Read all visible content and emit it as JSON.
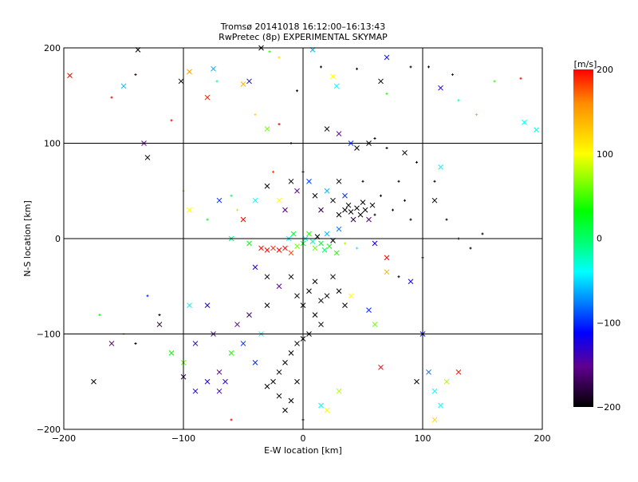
{
  "chart_data": {
    "type": "scatter",
    "title": "Tromsø 20141018 16:12:00–16:13:43",
    "subtitle": "RwPretec (8p) EXPERIMENTAL SKYMAP",
    "xlabel": "E-W location [km]",
    "ylabel": "N-S location [km]",
    "xlim": [
      -200,
      200
    ],
    "ylim": [
      -200,
      200
    ],
    "xticks": [
      "−200",
      "−100",
      "0",
      "100",
      "200"
    ],
    "yticks": [
      "−200",
      "−100",
      "0",
      "100",
      "200"
    ],
    "tick_values": [
      -200,
      -100,
      0,
      100,
      200
    ],
    "grid_values": [
      -100,
      0,
      100
    ],
    "colorbar": {
      "title": "[m/s]",
      "range": [
        -200,
        200
      ],
      "ticks": [
        "200",
        "100",
        "0",
        "−100",
        "−200"
      ],
      "tick_values": [
        200,
        100,
        0,
        -100,
        -200
      ],
      "colors": [
        "#ff0000",
        "#ff8c00",
        "#ffff00",
        "#00ff00",
        "#00ff80",
        "#00ffff",
        "#0000ff",
        "#600090",
        "#000000"
      ]
    },
    "point_fields": [
      "x_km",
      "y_km",
      "velocity_ms",
      "marker_x"
    ],
    "points": [
      [
        -195,
        171,
        200,
        1
      ],
      [
        -160,
        148,
        200,
        0
      ],
      [
        -150,
        160,
        -60,
        1
      ],
      [
        -140,
        172,
        -180,
        0
      ],
      [
        -138,
        198,
        -200,
        1
      ],
      [
        -102,
        165,
        -200,
        1
      ],
      [
        -95,
        175,
        150,
        1
      ],
      [
        -110,
        124,
        200,
        0
      ],
      [
        -75,
        178,
        -60,
        1
      ],
      [
        -80,
        148,
        190,
        1
      ],
      [
        -72,
        165,
        -20,
        0
      ],
      [
        -50,
        162,
        140,
        1
      ],
      [
        -45,
        165,
        -120,
        1
      ],
      [
        -35,
        200,
        -200,
        1
      ],
      [
        -28,
        196,
        40,
        0
      ],
      [
        -20,
        190,
        120,
        0
      ],
      [
        -5,
        155,
        -200,
        0
      ],
      [
        8,
        198,
        -60,
        1
      ],
      [
        15,
        180,
        -200,
        0
      ],
      [
        25,
        170,
        100,
        1
      ],
      [
        28,
        160,
        -40,
        1
      ],
      [
        45,
        178,
        -200,
        0
      ],
      [
        65,
        165,
        -200,
        1
      ],
      [
        70,
        152,
        40,
        0
      ],
      [
        70,
        190,
        -110,
        1
      ],
      [
        90,
        180,
        -200,
        0
      ],
      [
        105,
        180,
        -200,
        0
      ],
      [
        115,
        158,
        -120,
        1
      ],
      [
        125,
        172,
        -160,
        0
      ],
      [
        130,
        145,
        -20,
        0
      ],
      [
        145,
        130,
        140,
        0
      ],
      [
        160,
        165,
        50,
        0
      ],
      [
        182,
        168,
        200,
        0
      ],
      [
        185,
        122,
        -40,
        1
      ],
      [
        195,
        114,
        -30,
        1
      ],
      [
        -133,
        100,
        -150,
        1
      ],
      [
        -130,
        85,
        -200,
        1
      ],
      [
        -40,
        130,
        120,
        0
      ],
      [
        -30,
        115,
        60,
        1
      ],
      [
        -20,
        120,
        200,
        0
      ],
      [
        -10,
        100,
        -200,
        0
      ],
      [
        20,
        115,
        -200,
        1
      ],
      [
        30,
        110,
        -150,
        1
      ],
      [
        40,
        100,
        -100,
        1
      ],
      [
        45,
        95,
        -200,
        1
      ],
      [
        55,
        100,
        -200,
        1
      ],
      [
        60,
        105,
        -200,
        0
      ],
      [
        70,
        95,
        -200,
        0
      ],
      [
        85,
        90,
        -200,
        1
      ],
      [
        95,
        80,
        -200,
        0
      ],
      [
        115,
        75,
        -40,
        1
      ],
      [
        110,
        60,
        -200,
        0
      ],
      [
        80,
        60,
        -200,
        0
      ],
      [
        -100,
        50,
        140,
        0
      ],
      [
        -95,
        30,
        100,
        1
      ],
      [
        -80,
        20,
        20,
        0
      ],
      [
        -70,
        40,
        -100,
        1
      ],
      [
        -60,
        45,
        0,
        0
      ],
      [
        -55,
        30,
        120,
        0
      ],
      [
        -50,
        20,
        200,
        1
      ],
      [
        -40,
        40,
        -40,
        1
      ],
      [
        -30,
        55,
        -200,
        1
      ],
      [
        -25,
        70,
        180,
        0
      ],
      [
        -20,
        40,
        100,
        1
      ],
      [
        -15,
        30,
        -160,
        1
      ],
      [
        -10,
        60,
        -200,
        1
      ],
      [
        -5,
        50,
        -150,
        1
      ],
      [
        0,
        70,
        -200,
        0
      ],
      [
        5,
        60,
        -100,
        1
      ],
      [
        10,
        45,
        -200,
        1
      ],
      [
        15,
        30,
        -180,
        1
      ],
      [
        20,
        50,
        -60,
        1
      ],
      [
        25,
        40,
        -200,
        1
      ],
      [
        30,
        25,
        -200,
        1
      ],
      [
        35,
        30,
        -200,
        1
      ],
      [
        38,
        35,
        -200,
        1
      ],
      [
        40,
        28,
        -200,
        1
      ],
      [
        42,
        20,
        -180,
        1
      ],
      [
        45,
        32,
        -200,
        1
      ],
      [
        48,
        25,
        -200,
        1
      ],
      [
        50,
        38,
        -200,
        1
      ],
      [
        52,
        30,
        -200,
        1
      ],
      [
        55,
        20,
        -160,
        1
      ],
      [
        58,
        35,
        -200,
        1
      ],
      [
        60,
        25,
        -200,
        0
      ],
      [
        35,
        45,
        -100,
        1
      ],
      [
        30,
        60,
        -200,
        1
      ],
      [
        50,
        60,
        -200,
        0
      ],
      [
        65,
        45,
        -200,
        0
      ],
      [
        75,
        30,
        -200,
        0
      ],
      [
        85,
        40,
        -200,
        0
      ],
      [
        90,
        20,
        -200,
        0
      ],
      [
        110,
        40,
        -200,
        1
      ],
      [
        120,
        20,
        -200,
        0
      ],
      [
        -60,
        0,
        -10,
        1
      ],
      [
        -45,
        -5,
        30,
        1
      ],
      [
        -35,
        -10,
        200,
        1
      ],
      [
        -30,
        -12,
        200,
        1
      ],
      [
        -25,
        -10,
        190,
        1
      ],
      [
        -20,
        -12,
        200,
        1
      ],
      [
        -15,
        -10,
        200,
        1
      ],
      [
        -10,
        -15,
        180,
        1
      ],
      [
        -5,
        -8,
        60,
        1
      ],
      [
        0,
        -5,
        20,
        1
      ],
      [
        2,
        0,
        -30,
        1
      ],
      [
        5,
        5,
        40,
        1
      ],
      [
        8,
        -3,
        -20,
        1
      ],
      [
        10,
        -10,
        60,
        1
      ],
      [
        12,
        2,
        -200,
        1
      ],
      [
        15,
        -5,
        20,
        1
      ],
      [
        18,
        -12,
        0,
        1
      ],
      [
        20,
        5,
        -60,
        1
      ],
      [
        22,
        -8,
        30,
        1
      ],
      [
        25,
        -2,
        -200,
        1
      ],
      [
        28,
        -15,
        40,
        1
      ],
      [
        -8,
        5,
        20,
        1
      ],
      [
        -12,
        0,
        -40,
        1
      ],
      [
        30,
        10,
        -80,
        1
      ],
      [
        35,
        -5,
        80,
        0
      ],
      [
        45,
        -10,
        -40,
        0
      ],
      [
        60,
        -5,
        -120,
        1
      ],
      [
        70,
        -20,
        200,
        1
      ],
      [
        70,
        -35,
        140,
        1
      ],
      [
        80,
        -40,
        -200,
        0
      ],
      [
        90,
        -45,
        -120,
        1
      ],
      [
        100,
        -20,
        -200,
        0
      ],
      [
        130,
        0,
        -200,
        0
      ],
      [
        140,
        -10,
        -200,
        0
      ],
      [
        150,
        5,
        -200,
        0
      ],
      [
        -40,
        -30,
        -130,
        1
      ],
      [
        -30,
        -40,
        -200,
        1
      ],
      [
        -20,
        -50,
        -150,
        1
      ],
      [
        -10,
        -40,
        -200,
        1
      ],
      [
        -5,
        -60,
        -200,
        1
      ],
      [
        0,
        -70,
        -200,
        1
      ],
      [
        5,
        -55,
        -200,
        1
      ],
      [
        10,
        -45,
        -200,
        1
      ],
      [
        15,
        -65,
        -200,
        1
      ],
      [
        20,
        -60,
        -200,
        1
      ],
      [
        25,
        -40,
        -200,
        1
      ],
      [
        30,
        -55,
        -200,
        1
      ],
      [
        35,
        -70,
        -200,
        1
      ],
      [
        40,
        -60,
        100,
        1
      ],
      [
        10,
        -80,
        -200,
        1
      ],
      [
        15,
        -90,
        -200,
        1
      ],
      [
        5,
        -100,
        -200,
        1
      ],
      [
        0,
        -105,
        -200,
        1
      ],
      [
        -5,
        -110,
        -200,
        1
      ],
      [
        -10,
        -120,
        -200,
        1
      ],
      [
        -15,
        -130,
        -200,
        1
      ],
      [
        -20,
        -140,
        -200,
        1
      ],
      [
        -25,
        -150,
        -200,
        1
      ],
      [
        -30,
        -155,
        -200,
        1
      ],
      [
        -20,
        -165,
        -200,
        1
      ],
      [
        -10,
        -170,
        -200,
        1
      ],
      [
        -5,
        -150,
        -200,
        1
      ],
      [
        -15,
        -180,
        -200,
        1
      ],
      [
        0,
        -190,
        -200,
        0
      ],
      [
        15,
        -175,
        -40,
        1
      ],
      [
        20,
        -180,
        100,
        1
      ],
      [
        -170,
        -80,
        30,
        0
      ],
      [
        -160,
        -110,
        -160,
        1
      ],
      [
        -150,
        -100,
        20,
        0
      ],
      [
        -130,
        -60,
        -100,
        0
      ],
      [
        -120,
        -90,
        -180,
        1
      ],
      [
        -110,
        -120,
        30,
        1
      ],
      [
        -100,
        -130,
        60,
        1
      ],
      [
        -95,
        -70,
        -40,
        1
      ],
      [
        -90,
        -110,
        -130,
        1
      ],
      [
        -80,
        -70,
        -120,
        1
      ],
      [
        -75,
        -100,
        -150,
        1
      ],
      [
        -70,
        -140,
        -160,
        1
      ],
      [
        -65,
        -150,
        -130,
        1
      ],
      [
        -60,
        -120,
        40,
        1
      ],
      [
        -55,
        -90,
        -150,
        1
      ],
      [
        -50,
        -110,
        -100,
        1
      ],
      [
        -45,
        -80,
        -170,
        1
      ],
      [
        -40,
        -130,
        -100,
        1
      ],
      [
        -35,
        -100,
        -40,
        1
      ],
      [
        -30,
        -70,
        -200,
        1
      ],
      [
        -70,
        -160,
        -140,
        1
      ],
      [
        -80,
        -150,
        -120,
        1
      ],
      [
        -90,
        -160,
        -120,
        1
      ],
      [
        -100,
        -145,
        -180,
        1
      ],
      [
        -175,
        -150,
        -200,
        1
      ],
      [
        -140,
        -110,
        -200,
        0
      ],
      [
        -120,
        -80,
        -200,
        0
      ],
      [
        55,
        -75,
        -100,
        1
      ],
      [
        60,
        -90,
        60,
        1
      ],
      [
        100,
        -100,
        -110,
        1
      ],
      [
        105,
        -140,
        -80,
        1
      ],
      [
        110,
        -160,
        -40,
        1
      ],
      [
        115,
        -175,
        -40,
        1
      ],
      [
        120,
        -150,
        80,
        1
      ],
      [
        130,
        -140,
        200,
        1
      ],
      [
        110,
        -190,
        120,
        1
      ],
      [
        95,
        -150,
        -200,
        1
      ],
      [
        65,
        -135,
        200,
        1
      ],
      [
        30,
        -160,
        80,
        1
      ],
      [
        -60,
        -190,
        200,
        0
      ]
    ]
  }
}
